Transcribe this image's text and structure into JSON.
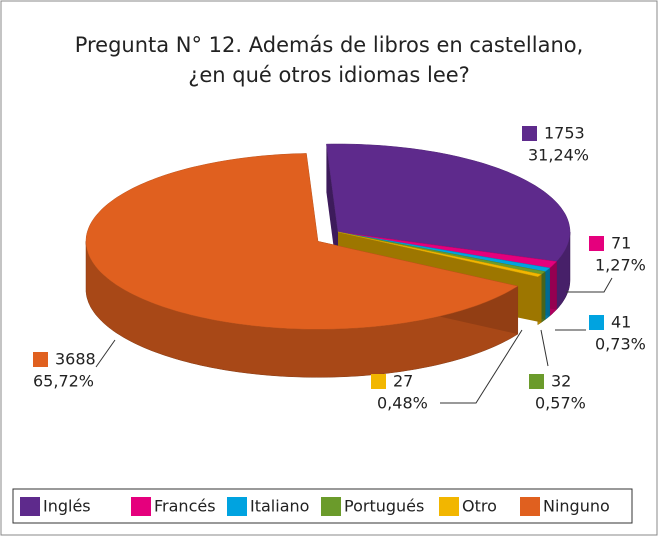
{
  "chart_data": {
    "type": "pie",
    "title": [
      "Pregunta N° 12. Además de libros en castellano,",
      "¿en qué otros idiomas lee?"
    ],
    "categories": [
      "Inglés",
      "Francés",
      "Italiano",
      "Portugués",
      "Otro",
      "Ninguno"
    ],
    "values": [
      1753,
      71,
      41,
      32,
      27,
      3688
    ],
    "percents": [
      31.24,
      1.27,
      0.73,
      0.57,
      0.48,
      65.72
    ],
    "percent_labels": [
      "31,24%",
      "1,27%",
      "0,73%",
      "0,57%",
      "0,48%",
      "65,72%"
    ],
    "colors": [
      "#5e2a8c",
      "#e5007d",
      "#00a3e0",
      "#6b9b2b",
      "#f2b600",
      "#e0601f"
    ],
    "legend": "bottom"
  }
}
